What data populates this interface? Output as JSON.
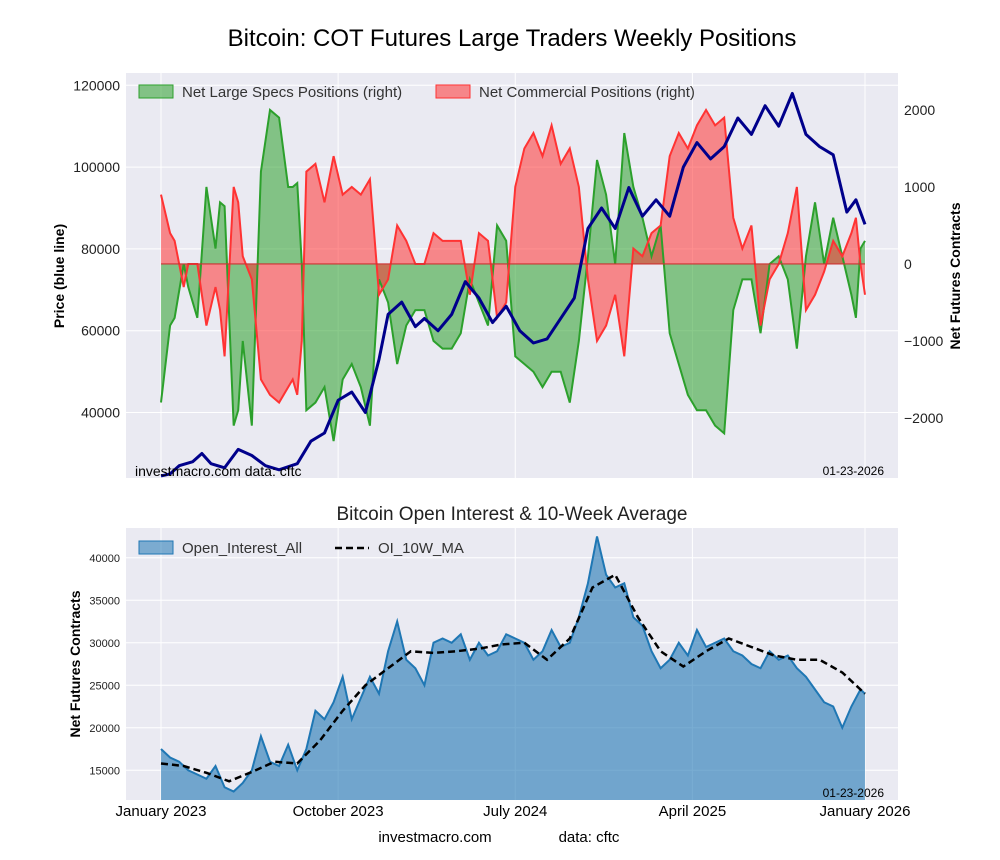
{
  "figure": {
    "title": "Bitcoin: COT Futures Large Traders Weekly Positions",
    "footer_left": "investmacro.com",
    "footer_right": "data: cftc"
  },
  "chart_data": [
    {
      "type": "area",
      "ylabel_left": "Price (blue line)",
      "ylabel_right": "Net Futures Contracts",
      "watermark_left": "investmacro.com    data: cftc",
      "watermark_right": "01-23-2026",
      "ylim_left": [
        24000,
        123000
      ],
      "ylim_right": [
        -2780,
        2480
      ],
      "yticks_left": [
        40000,
        60000,
        80000,
        100000,
        120000
      ],
      "ytick_labels_left": [
        "40000",
        "60000",
        "80000",
        "100000",
        "120000"
      ],
      "yticks_right": [
        -2000,
        -1000,
        0,
        1000,
        2000
      ],
      "ytick_labels_right": [
        "−2000",
        "−1000",
        "0",
        "1000",
        "2000"
      ],
      "grid": true,
      "legend_placement": "top-left",
      "legend": [
        "Net Large Specs Positions (right)",
        "Net Commercial Positions (right)"
      ],
      "colors": {
        "specs": "#2ca02c",
        "commercial": "#ff3333",
        "price": "#00008b"
      },
      "price_series": {
        "name": "Price",
        "x": [
          0,
          2,
          4,
          7,
          9,
          11,
          14,
          17,
          20,
          23,
          26,
          30,
          33,
          36,
          39,
          42,
          45,
          48,
          50,
          53,
          56,
          58,
          61,
          64,
          67,
          70,
          73,
          76,
          79,
          82,
          85,
          88,
          91,
          94,
          97,
          100,
          103,
          106,
          109,
          112,
          115,
          118,
          121,
          124,
          127,
          130,
          133,
          136,
          139,
          142,
          145,
          148,
          151,
          153,
          155
        ],
        "values": [
          24500,
          25000,
          27000,
          28000,
          30000,
          27500,
          26500,
          31000,
          29500,
          27000,
          26000,
          27500,
          33000,
          35000,
          43000,
          45000,
          40000,
          53000,
          64000,
          67000,
          61000,
          63000,
          60000,
          64000,
          72000,
          68000,
          62000,
          66000,
          60000,
          57000,
          58000,
          63000,
          68000,
          85000,
          90000,
          85000,
          95000,
          88000,
          92000,
          88000,
          100000,
          106000,
          102000,
          105000,
          112000,
          108000,
          115000,
          110000,
          118000,
          108000,
          105000,
          103000,
          89000,
          92000,
          86000
        ]
      },
      "series": [
        {
          "name": "Net Large Specs Positions (right)",
          "x": [
            0,
            2,
            3,
            5,
            6,
            8,
            10,
            12,
            13,
            14,
            16,
            17,
            18,
            20,
            22,
            24,
            26,
            28,
            29,
            30,
            31,
            32,
            34,
            36,
            38,
            40,
            42,
            44,
            46,
            48,
            50,
            52,
            54,
            56,
            58,
            60,
            62,
            64,
            66,
            68,
            70,
            72,
            74,
            76,
            78,
            80,
            82,
            84,
            86,
            88,
            90,
            92,
            94,
            96,
            98,
            100,
            102,
            104,
            106,
            108,
            110,
            112,
            114,
            116,
            118,
            120,
            122,
            124,
            126,
            128,
            130,
            132,
            134,
            136,
            138,
            140,
            142,
            144,
            146,
            148,
            150,
            152,
            153,
            154,
            155
          ],
          "values": [
            -1800,
            -800,
            -700,
            0,
            -300,
            -700,
            1000,
            200,
            800,
            750,
            -2100,
            -1900,
            -1000,
            -2100,
            1200,
            2000,
            1900,
            1000,
            1000,
            1050,
            0,
            -1900,
            -1800,
            -1600,
            -2300,
            -1500,
            -1300,
            -1600,
            -2100,
            -200,
            -500,
            -1300,
            -800,
            -600,
            -600,
            -1000,
            -1100,
            -1100,
            -900,
            -200,
            -500,
            -800,
            500,
            300,
            -1200,
            -1300,
            -1400,
            -1600,
            -1400,
            -1400,
            -1800,
            -1000,
            100,
            1350,
            900,
            0,
            1700,
            1000,
            600,
            100,
            500,
            -900,
            -1300,
            -1700,
            -1900,
            -1900,
            -2100,
            -2200,
            -600,
            -200,
            -200,
            -900,
            0,
            100,
            -200,
            -1100,
            100,
            800,
            0,
            600,
            100,
            -400,
            -700,
            200,
            300
          ]
        },
        {
          "name": "Net Commercial Positions (right)",
          "x": [
            0,
            2,
            3,
            5,
            6,
            8,
            10,
            12,
            13,
            14,
            16,
            17,
            18,
            20,
            22,
            24,
            26,
            28,
            29,
            30,
            31,
            32,
            34,
            36,
            38,
            40,
            42,
            44,
            46,
            48,
            50,
            52,
            54,
            56,
            58,
            60,
            62,
            64,
            66,
            68,
            70,
            72,
            74,
            76,
            78,
            80,
            82,
            84,
            86,
            88,
            90,
            92,
            94,
            96,
            98,
            100,
            102,
            104,
            106,
            108,
            110,
            112,
            114,
            116,
            118,
            120,
            122,
            124,
            126,
            128,
            130,
            132,
            134,
            136,
            138,
            140,
            142,
            144,
            146,
            148,
            150,
            152,
            153,
            154,
            155
          ],
          "values": [
            900,
            400,
            300,
            -300,
            0,
            0,
            -800,
            -300,
            -600,
            -1200,
            1000,
            800,
            100,
            -200,
            -1500,
            -1700,
            -1800,
            -1600,
            -1500,
            -1700,
            -1000,
            1200,
            1300,
            800,
            1400,
            900,
            1000,
            900,
            1100,
            -400,
            -200,
            500,
            300,
            0,
            0,
            400,
            300,
            300,
            300,
            -400,
            400,
            300,
            -700,
            -500,
            1000,
            1500,
            1700,
            1400,
            1800,
            1300,
            1500,
            1000,
            -200,
            -1000,
            -800,
            -400,
            -1200,
            200,
            100,
            400,
            500,
            1400,
            1700,
            1500,
            1800,
            2000,
            1800,
            1900,
            600,
            200,
            500,
            -800,
            -200,
            0,
            400,
            1000,
            -600,
            -400,
            -100,
            300,
            100,
            400,
            600,
            0,
            -400
          ]
        }
      ]
    },
    {
      "type": "area",
      "title": "Bitcoin Open Interest & 10-Week Average",
      "ylabel": "Net Futures Contracts",
      "watermark_right": "01-23-2026",
      "ylim": [
        11500,
        43500
      ],
      "yticks": [
        15000,
        20000,
        25000,
        30000,
        35000,
        40000
      ],
      "grid": true,
      "legend_placement": "top-left",
      "legend": [
        "Open_Interest_All",
        "OI_10W_MA"
      ],
      "colors": {
        "open_interest": "#1f77b4",
        "ma": "#000000"
      },
      "x_axis": {
        "labels": [
          "January 2023",
          "October 2023",
          "July 2024",
          "April 2025",
          "January 2026"
        ],
        "positions": [
          0,
          39,
          78,
          117,
          155
        ]
      },
      "series": [
        {
          "name": "Open_Interest_All",
          "x": [
            0,
            2,
            4,
            6,
            8,
            10,
            12,
            14,
            16,
            18,
            20,
            22,
            24,
            26,
            28,
            30,
            32,
            34,
            36,
            38,
            40,
            42,
            44,
            46,
            48,
            50,
            52,
            54,
            56,
            58,
            60,
            62,
            64,
            66,
            68,
            70,
            72,
            74,
            76,
            78,
            80,
            82,
            84,
            86,
            88,
            90,
            92,
            94,
            96,
            98,
            100,
            102,
            104,
            106,
            108,
            110,
            112,
            114,
            116,
            118,
            120,
            122,
            124,
            126,
            128,
            130,
            132,
            134,
            136,
            138,
            140,
            142,
            144,
            146,
            148,
            150,
            152,
            154,
            155
          ],
          "values": [
            17500,
            16500,
            16000,
            15000,
            14500,
            14000,
            15500,
            13000,
            12500,
            13500,
            15000,
            19000,
            16000,
            15500,
            18000,
            15000,
            17500,
            22000,
            21000,
            23000,
            26000,
            21000,
            23500,
            26000,
            24000,
            29000,
            32500,
            28000,
            27000,
            25000,
            30000,
            30500,
            30000,
            31000,
            28000,
            30000,
            28500,
            29000,
            31000,
            30500,
            30000,
            28000,
            29000,
            31500,
            29500,
            30000,
            33000,
            37000,
            42500,
            38000,
            36500,
            37000,
            33000,
            32000,
            29000,
            27000,
            28000,
            30000,
            28500,
            31500,
            29500,
            30000,
            30500,
            29000,
            28500,
            27500,
            27000,
            29000,
            28000,
            28500,
            27000,
            26000,
            24500,
            23000,
            22500,
            20000,
            22500,
            24500,
            24000
          ]
        },
        {
          "name": "OI_10W_MA",
          "x": [
            0,
            5,
            10,
            15,
            20,
            25,
            30,
            35,
            40,
            45,
            50,
            55,
            60,
            65,
            70,
            75,
            80,
            85,
            90,
            95,
            100,
            105,
            110,
            115,
            120,
            125,
            130,
            135,
            140,
            145,
            150,
            155
          ],
          "values": [
            15800,
            15500,
            14700,
            13700,
            14800,
            16000,
            15800,
            18500,
            22000,
            25000,
            27000,
            29000,
            28800,
            29000,
            29300,
            29800,
            30000,
            28000,
            30500,
            36500,
            38000,
            33000,
            29000,
            27200,
            29000,
            30500,
            29500,
            28500,
            28000,
            28000,
            26500,
            24000
          ]
        }
      ]
    }
  ]
}
